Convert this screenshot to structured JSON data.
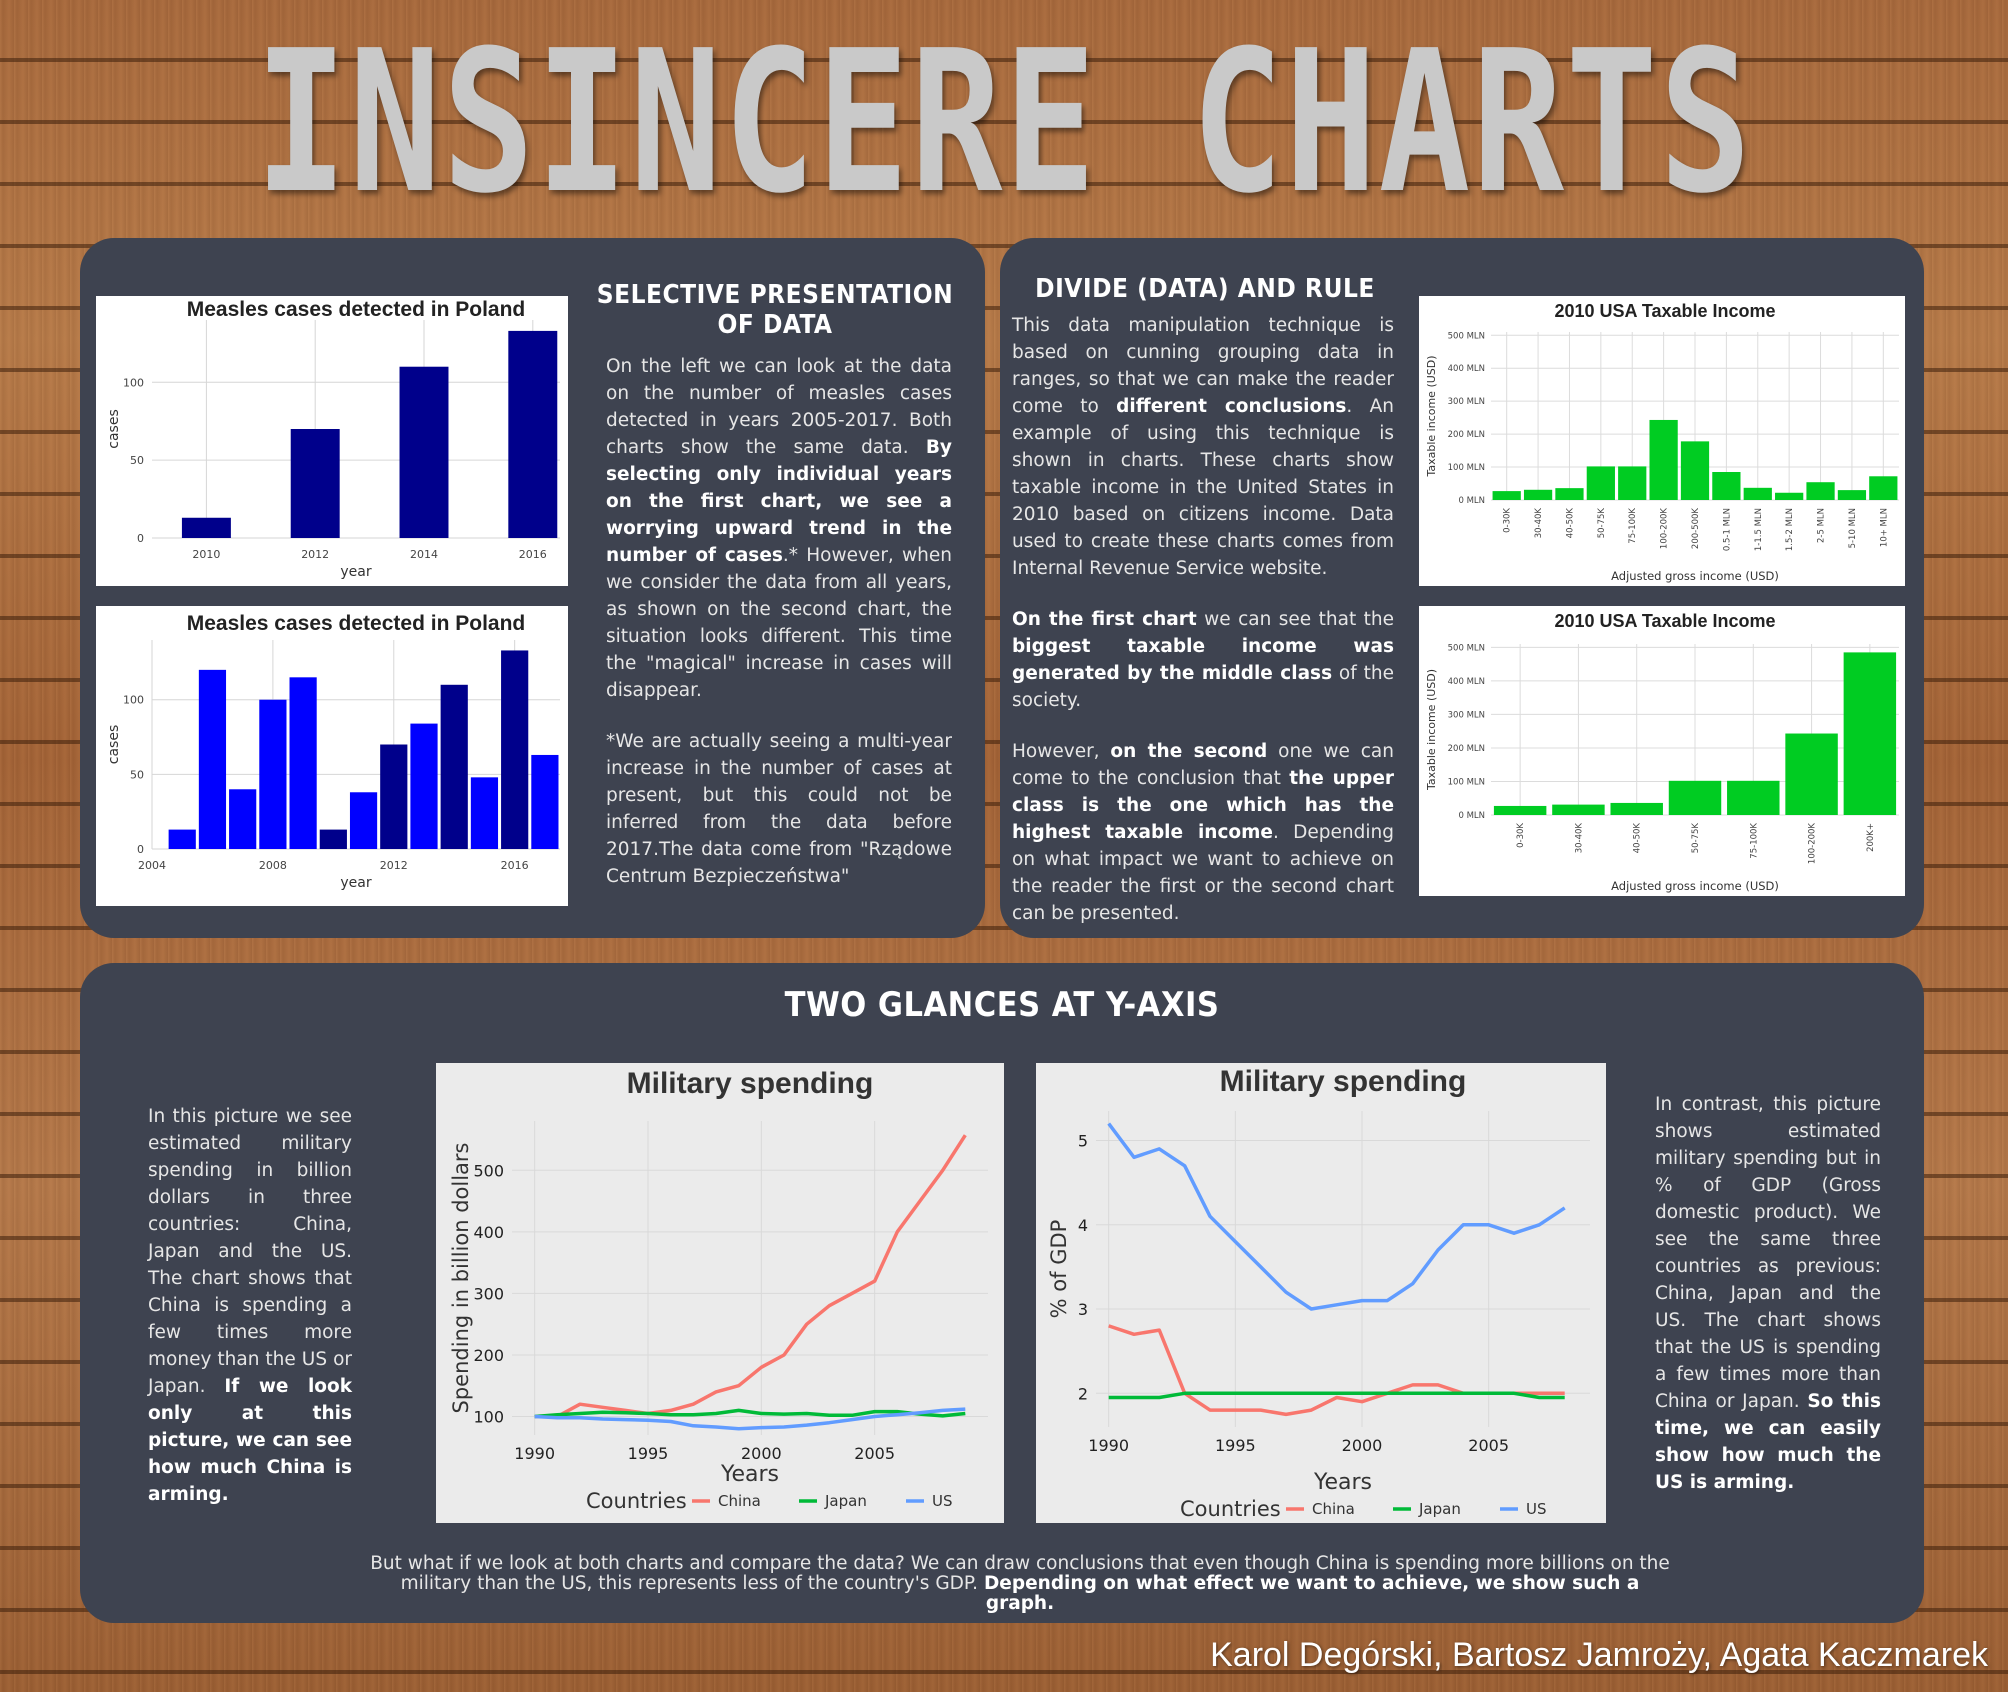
{
  "page_title": "INSINCERE CHARTS",
  "section_a": {
    "heading": "SELECTIVE PRESENTATION OF DATA",
    "para1_pre": "On the left we can look at the data on the number of measles cases detected in years 2005-2017. Both charts show the same data. ",
    "para1_bold": "By selecting only individual years on the first chart, we see a worrying upward trend in the number of cases",
    "para1_post": ".* However, when we consider the data from all years, as shown on the second chart, the situation looks different. This time the \"magical\" increase in cases will disappear.",
    "para2": "*We are actually seeing a multi-year increase in the number of cases at present, but this could not be inferred from the data before 2017.The data come from \"Rządowe Centrum Bezpieczeństwa\""
  },
  "section_b": {
    "heading": "DIVIDE (DATA) AND RULE",
    "p1_a": "This data manipulation technique is based on cunning grouping data in ranges, so that we can make the reader come to ",
    "p1_b": "different conclusions",
    "p1_c": ". An example of using this technique is shown in charts. These charts show taxable income in the United States in 2010 based on citizens income. Data used to create these charts comes from Internal Revenue Service website.",
    "p2_a": "On the first chart",
    "p2_b": " we can see that the ",
    "p2_c": "biggest taxable income was generated by the middle class",
    "p2_d": " of the society.",
    "p3_a": "However, ",
    "p3_b": "on the second",
    "p3_c": " one we can come to the conclusion that ",
    "p3_d": "the upper class is the one which has the highest taxable income",
    "p3_e": ". Depending on what impact we want to achieve on the reader the first or the second chart can be presented."
  },
  "section_c": {
    "heading": "TWO GLANCES AT Y-AXIS",
    "left_pre": "In this picture we see estimated military spending in billion dollars in three countries: China, Japan and the US. The chart shows that China is spending a few times more money than the US or Japan. ",
    "left_bold": "If we look only at this picture, we can see how much China is arming.",
    "right_pre": "In contrast, this picture shows estimated military spending but in % of GDP (Gross domestic product). We see the same three countries as previous: China, Japan and the US. The chart shows that the US is spending a few times more than China or Japan. ",
    "right_bold": "So this time, we can easily show how much the US is arming.",
    "footer_pre": "But what if we look at both charts and compare the data? We can draw conclusions that even though China is spending more billions on the military than the US, this represents less of the country's GDP. ",
    "footer_bold": "Depending on what effect we want to achieve, we show such a graph."
  },
  "authors": "Karol Degórski, Bartosz Jamroży, Agata Kaczmarek",
  "colors": {
    "panel": "#3e4350",
    "navy": "#00008b",
    "blue": "#0000ff",
    "green": "#00cc22",
    "china": "#f8766d",
    "japan": "#00ba38",
    "us": "#619cff"
  },
  "chart_data": [
    {
      "id": "measles1",
      "type": "bar",
      "title": "Measles cases detected in Poland",
      "xlabel": "year",
      "ylabel": "cases",
      "x": [
        2010,
        2012,
        2014,
        2016
      ],
      "values": [
        13,
        70,
        110,
        133
      ],
      "xticks": [
        2010,
        2012,
        2014,
        2016
      ],
      "yticks": [
        0,
        50,
        100
      ],
      "xlim": [
        2009,
        2016.5
      ],
      "ylim": [
        0,
        140
      ]
    },
    {
      "id": "measles2",
      "type": "bar",
      "title": "Measles cases detected in Poland",
      "xlabel": "year",
      "ylabel": "cases",
      "x": [
        2005,
        2006,
        2007,
        2008,
        2009,
        2010,
        2011,
        2012,
        2013,
        2014,
        2015,
        2016,
        2017
      ],
      "values": [
        13,
        120,
        40,
        100,
        115,
        13,
        38,
        70,
        84,
        110,
        48,
        133,
        63
      ],
      "highlight": [
        2010,
        2012,
        2014,
        2016
      ],
      "xticks": [
        2004,
        2008,
        2012,
        2016
      ],
      "yticks": [
        0,
        50,
        100
      ],
      "xlim": [
        2004,
        2017.5
      ],
      "ylim": [
        0,
        140
      ]
    },
    {
      "id": "income1",
      "type": "bar",
      "title": "2010 USA Taxable Income",
      "xlabel": "Adjusted gross income (USD)",
      "ylabel": "Taxable income (USD)",
      "categories": [
        "0-30K",
        "30-40K",
        "40-50K",
        "50-75K",
        "75-100K",
        "100-200K",
        "200-500K",
        "0.5-1 MLN",
        "1-1.5 MLN",
        "1.5-2 MLN",
        "2-5 MLN",
        "5-10 MLN",
        "10+ MLN"
      ],
      "values": [
        27,
        31,
        36,
        102,
        102,
        243,
        178,
        85,
        37,
        22,
        54,
        30,
        72
      ],
      "yticks": [
        0,
        100,
        200,
        300,
        400,
        500
      ],
      "ytick_labels": [
        "0 MLN",
        "100 MLN",
        "200 MLN",
        "300 MLN",
        "400 MLN",
        "500 MLN"
      ],
      "ylim": [
        0,
        510
      ]
    },
    {
      "id": "income2",
      "type": "bar",
      "title": "2010 USA Taxable Income",
      "xlabel": "Adjusted gross income (USD)",
      "ylabel": "Taxable income (USD)",
      "categories": [
        "0-30K",
        "30-40K",
        "40-50K",
        "50-75K",
        "75-100K",
        "100-200K",
        "200K+"
      ],
      "values": [
        27,
        31,
        36,
        102,
        102,
        243,
        485
      ],
      "yticks": [
        0,
        100,
        200,
        300,
        400,
        500
      ],
      "ytick_labels": [
        "0 MLN",
        "100 MLN",
        "200 MLN",
        "300 MLN",
        "400 MLN",
        "500 MLN"
      ],
      "ylim": [
        0,
        510
      ]
    },
    {
      "id": "mil1",
      "type": "line",
      "title": "Military spending",
      "xlabel": "Years",
      "ylabel": "Spending in billion dollars",
      "legend_title": "Countries",
      "legend_position": "bottom",
      "x": [
        1990,
        1991,
        1992,
        1993,
        1994,
        1995,
        1996,
        1997,
        1998,
        1999,
        2000,
        2001,
        2002,
        2003,
        2004,
        2005,
        2006,
        2007,
        2008,
        2009
      ],
      "series": [
        {
          "name": "China",
          "values": [
            100,
            100,
            120,
            115,
            110,
            105,
            110,
            120,
            140,
            150,
            180,
            200,
            250,
            280,
            300,
            320,
            400,
            450,
            500,
            557
          ]
        },
        {
          "name": "Japan",
          "values": [
            100,
            103,
            105,
            107,
            106,
            105,
            103,
            103,
            105,
            110,
            105,
            104,
            105,
            102,
            102,
            108,
            108,
            104,
            101,
            105
          ]
        },
        {
          "name": "US",
          "values": [
            100,
            98,
            98,
            96,
            95,
            94,
            92,
            85,
            83,
            80,
            82,
            83,
            86,
            90,
            95,
            100,
            103,
            106,
            110,
            112
          ]
        }
      ],
      "xticks": [
        1990,
        1995,
        2000,
        2005
      ],
      "yticks": [
        100,
        200,
        300,
        400,
        500
      ],
      "xlim": [
        1989,
        2010
      ],
      "ylim": [
        70,
        580
      ]
    },
    {
      "id": "mil2",
      "type": "line",
      "title": "Military spending",
      "xlabel": "Years",
      "ylabel": "% of GDP",
      "legend_title": "Countries",
      "legend_position": "bottom",
      "x": [
        1990,
        1991,
        1992,
        1993,
        1994,
        1995,
        1996,
        1997,
        1998,
        1999,
        2000,
        2001,
        2002,
        2003,
        2004,
        2005,
        2006,
        2007,
        2008
      ],
      "series": [
        {
          "name": "China",
          "values": [
            2.8,
            2.7,
            2.75,
            2.0,
            1.8,
            1.8,
            1.8,
            1.75,
            1.8,
            1.95,
            1.9,
            2.0,
            2.1,
            2.1,
            2.0,
            2.0,
            2.0,
            2.0,
            2.0
          ]
        },
        {
          "name": "Japan",
          "values": [
            1.95,
            1.95,
            1.95,
            2.0,
            2.0,
            2.0,
            2.0,
            2.0,
            2.0,
            2.0,
            2.0,
            2.0,
            2.0,
            2.0,
            2.0,
            2.0,
            2.0,
            1.95,
            1.95
          ]
        },
        {
          "name": "US",
          "values": [
            5.2,
            4.8,
            4.9,
            4.7,
            4.1,
            3.8,
            3.5,
            3.2,
            3.0,
            3.05,
            3.1,
            3.1,
            3.3,
            3.7,
            4.0,
            4.0,
            3.9,
            4.0,
            4.2
          ]
        }
      ],
      "xticks": [
        1990,
        1995,
        2000,
        2005
      ],
      "yticks": [
        2,
        3,
        4,
        5
      ],
      "xlim": [
        1989.5,
        2009
      ],
      "ylim": [
        1.6,
        5.35
      ]
    }
  ]
}
